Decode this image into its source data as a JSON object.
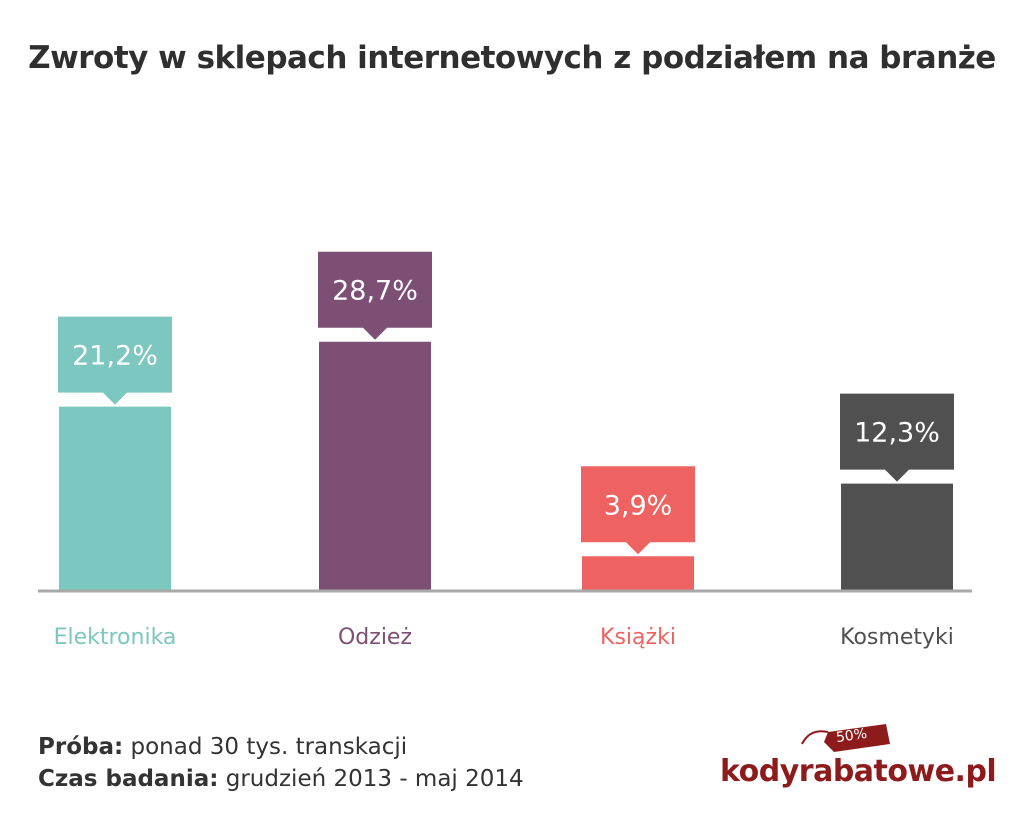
{
  "title": "Zwroty w sklepach internetowych z podziałem na branże",
  "chart_data": {
    "type": "bar",
    "title": "Zwroty w sklepach internetowych z podziałem na branże",
    "categories": [
      "Elektronika",
      "Odzież",
      "Książki",
      "Kosmetyki"
    ],
    "values": [
      21.2,
      28.7,
      3.9,
      12.3
    ],
    "value_labels": [
      "21,2%",
      "28,7%",
      "3,9%",
      "12,3%"
    ],
    "colors": [
      "#7cc7bf",
      "#7d4f74",
      "#ee6262",
      "#505050"
    ],
    "ylim": [
      0,
      35
    ],
    "grid": false,
    "legend": "none"
  },
  "footer": {
    "line1_bold": "Próba:",
    "line1_text": " ponad 30 tys. transkacji",
    "line2_bold": "Czas badania:",
    "line2_text": " grudzień 2013 - maj 2014"
  },
  "logo": {
    "text": "kodyrabatowe.pl",
    "tag": "50%",
    "color": "#8e1b1b"
  }
}
